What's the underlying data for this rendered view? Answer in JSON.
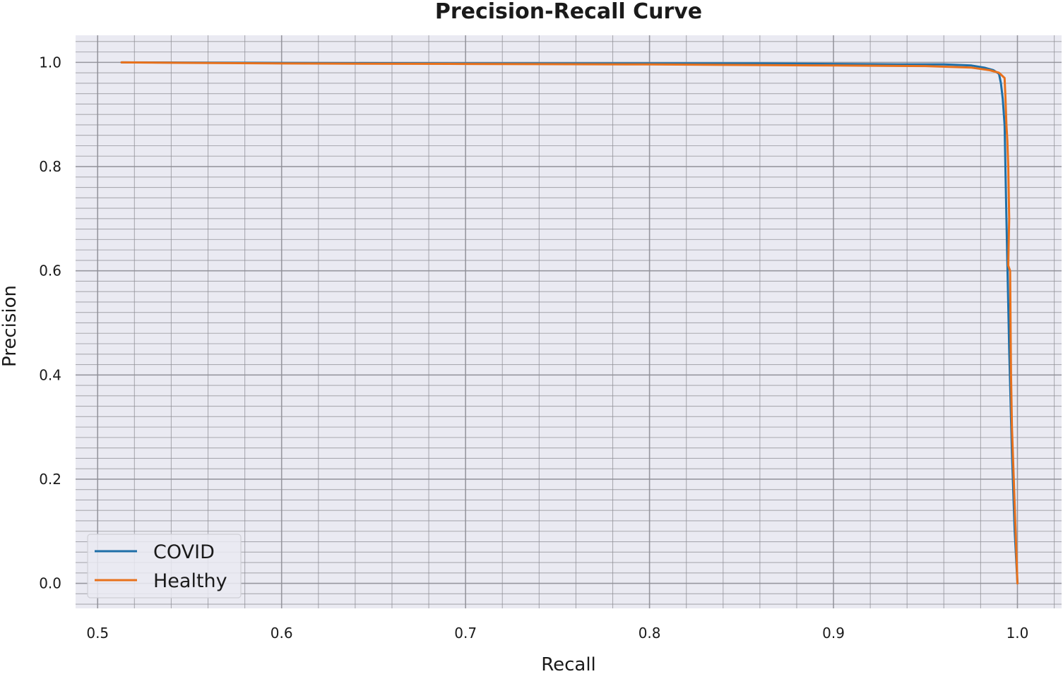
{
  "chart_data": {
    "type": "line",
    "title": "Precision-Recall Curve",
    "xlabel": "Recall",
    "ylabel": "Precision",
    "xlim": [
      0.488,
      1.024
    ],
    "ylim": [
      -0.048,
      1.052
    ],
    "xticks": [
      0.5,
      0.6,
      0.7,
      0.8,
      0.9,
      1.0
    ],
    "xtick_labels": [
      "0.5",
      "0.6",
      "0.7",
      "0.8",
      "0.9",
      "1.0"
    ],
    "yticks": [
      0.0,
      0.2,
      0.4,
      0.6,
      0.8,
      1.0
    ],
    "ytick_labels": [
      "0.0",
      "0.2",
      "0.4",
      "0.6",
      "0.8",
      "1.0"
    ],
    "grid": true,
    "minor_grid": true,
    "legend_position": "lower-left",
    "background_color": "#eaeaf2",
    "grid_color": "#8e8e96",
    "series": [
      {
        "name": "COVID",
        "color": "#1f6fa8",
        "x": [
          0.513,
          0.6,
          0.7,
          0.8,
          0.86,
          0.9,
          0.94,
          0.96,
          0.975,
          0.982,
          0.987,
          0.99,
          0.991,
          0.992,
          0.993,
          0.994,
          0.9955,
          0.997,
          0.9985,
          1.0
        ],
        "y": [
          1.0,
          0.999,
          0.998,
          0.998,
          0.998,
          0.997,
          0.996,
          0.996,
          0.994,
          0.99,
          0.985,
          0.978,
          0.96,
          0.93,
          0.88,
          0.7,
          0.45,
          0.25,
          0.1,
          0.0
        ]
      },
      {
        "name": "Healthy",
        "color": "#e8711c",
        "x": [
          0.513,
          0.6,
          0.7,
          0.8,
          0.9,
          0.95,
          0.975,
          0.985,
          0.99,
          0.993,
          0.9935,
          0.994,
          0.9945,
          0.995,
          0.9955,
          0.995,
          0.996,
          0.9965,
          0.997,
          0.998,
          0.999,
          1.0
        ],
        "y": [
          1.0,
          0.998,
          0.997,
          0.996,
          0.994,
          0.993,
          0.99,
          0.985,
          0.98,
          0.97,
          0.93,
          0.88,
          0.85,
          0.8,
          0.7,
          0.61,
          0.6,
          0.4,
          0.3,
          0.2,
          0.1,
          0.0
        ]
      }
    ]
  }
}
